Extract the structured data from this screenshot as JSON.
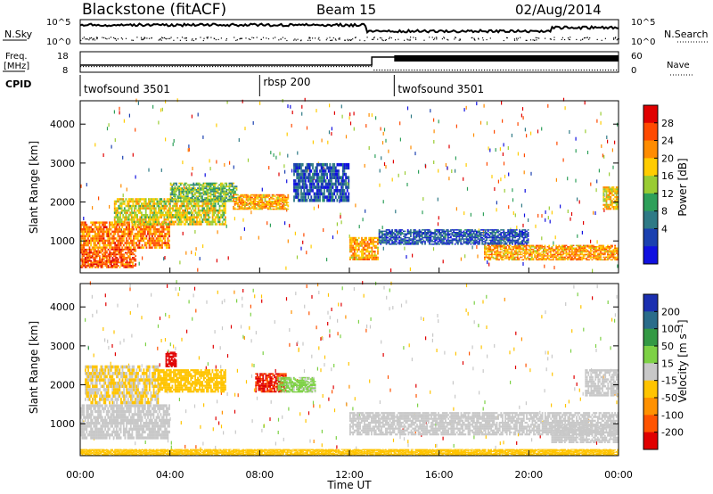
{
  "header": {
    "title": "Blackstone (fitACF)",
    "beam": "Beam 15",
    "date": "02/Aug/2014"
  },
  "panels": {
    "nsky_label": "N.Sky",
    "nsearch_label": "N.Search",
    "freq_label_line1": "Freq.",
    "freq_label_line2": "[MHz]",
    "cpid_label": "CPID",
    "nave_label": "Nave",
    "nsky_ticks": [
      "10^5",
      "10^0"
    ],
    "nsearch_ticks": [
      "10^5",
      "10^0"
    ],
    "freq_ticks": [
      "18",
      "8"
    ],
    "nave_ticks": [
      "60",
      "0"
    ]
  },
  "cpid_segments": [
    {
      "label": "twofsound 3501",
      "start_hour": 0
    },
    {
      "label": "rbsp 200",
      "start_hour": 8
    },
    {
      "label": "twofsound 3501",
      "start_hour": 14
    }
  ],
  "colorbars": {
    "power_label": "Power [dB]",
    "power_ticks": [
      "28",
      "24",
      "20",
      "16",
      "12",
      "8",
      "4"
    ],
    "power_colors": [
      "#e00000",
      "#ff4a00",
      "#ff8c00",
      "#ffcc00",
      "#99cc33",
      "#2ea05a",
      "#2f7a86",
      "#1b40b0",
      "#1010e0"
    ],
    "velocity_label": "Velocity [m s⁻¹]",
    "velocity_ticks": [
      "200",
      "100",
      "50",
      "15",
      "-15",
      "-50",
      "-100",
      "-200"
    ],
    "velocity_colors": [
      "#1b2fb0",
      "#2a6c8a",
      "#339944",
      "#7dd145",
      "#c8c8c8",
      "#ffc400",
      "#ff9100",
      "#ff5400",
      "#e00000"
    ]
  },
  "chart_data": [
    {
      "type": "heatmap",
      "name": "power",
      "ylabel": "Slant Range [km]",
      "xlabel": "",
      "ylim": [
        180,
        4600
      ],
      "xlim": [
        0,
        24
      ],
      "yticks": [
        1000,
        2000,
        3000,
        4000
      ],
      "colorbar_range_db": [
        0,
        32
      ],
      "bands": [
        {
          "start_hour": 0.0,
          "end_hour": 4.0,
          "range_low": 800,
          "range_high": 1500,
          "power_db": 24
        },
        {
          "start_hour": 0.0,
          "end_hour": 2.5,
          "range_low": 300,
          "range_high": 800,
          "power_db": 26
        },
        {
          "start_hour": 1.5,
          "end_hour": 6.5,
          "range_low": 1400,
          "range_high": 2100,
          "power_db": 18
        },
        {
          "start_hour": 4.0,
          "end_hour": 7.0,
          "range_low": 2000,
          "range_high": 2500,
          "power_db": 14
        },
        {
          "start_hour": 6.8,
          "end_hour": 9.3,
          "range_low": 1800,
          "range_high": 2200,
          "power_db": 22
        },
        {
          "start_hour": 9.5,
          "end_hour": 12.0,
          "range_low": 2000,
          "range_high": 3000,
          "power_db": 6
        },
        {
          "start_hour": 12.0,
          "end_hour": 13.3,
          "range_low": 500,
          "range_high": 1100,
          "power_db": 22
        },
        {
          "start_hour": 13.3,
          "end_hour": 20.0,
          "range_low": 900,
          "range_high": 1300,
          "power_db": 6
        },
        {
          "start_hour": 18.0,
          "end_hour": 24.0,
          "range_low": 500,
          "range_high": 900,
          "power_db": 22
        },
        {
          "start_hour": 23.3,
          "end_hour": 24.0,
          "range_low": 1800,
          "range_high": 2400,
          "power_db": 20
        }
      ]
    },
    {
      "type": "heatmap",
      "name": "velocity",
      "ylabel": "Slant Range [km]",
      "xlabel": "Time UT",
      "xticks": [
        "00:00",
        "04:00",
        "08:00",
        "12:00",
        "16:00",
        "20:00",
        "00:00"
      ],
      "ylim": [
        180,
        4600
      ],
      "xlim": [
        0,
        24
      ],
      "yticks": [
        1000,
        2000,
        3000,
        4000
      ],
      "colorbar_range": [
        -250,
        250
      ],
      "bands": [
        {
          "start_hour": 0.0,
          "end_hour": 4.0,
          "range_low": 600,
          "range_high": 1500,
          "velocity": 0
        },
        {
          "start_hour": 0.2,
          "end_hour": 3.5,
          "range_low": 1500,
          "range_high": 2500,
          "velocity": -30
        },
        {
          "start_hour": 3.5,
          "end_hour": 6.5,
          "range_low": 1800,
          "range_high": 2400,
          "velocity": -60
        },
        {
          "start_hour": 3.8,
          "end_hour": 4.3,
          "range_low": 2450,
          "range_high": 2850,
          "velocity": -250
        },
        {
          "start_hour": 7.8,
          "end_hour": 9.2,
          "range_low": 1800,
          "range_high": 2300,
          "velocity": -200
        },
        {
          "start_hour": 8.8,
          "end_hour": 10.5,
          "range_low": 1800,
          "range_high": 2200,
          "velocity": 40
        },
        {
          "start_hour": 12.0,
          "end_hour": 24.0,
          "range_low": 700,
          "range_high": 1300,
          "velocity": 0
        },
        {
          "start_hour": 21.0,
          "end_hour": 24.0,
          "range_low": 500,
          "range_high": 1000,
          "velocity": 0
        },
        {
          "start_hour": 0.0,
          "end_hour": 24.0,
          "range_low": 180,
          "range_high": 350,
          "velocity": -60
        },
        {
          "start_hour": 22.5,
          "end_hour": 24.0,
          "range_low": 1700,
          "range_high": 2400,
          "velocity": 0
        }
      ]
    }
  ]
}
